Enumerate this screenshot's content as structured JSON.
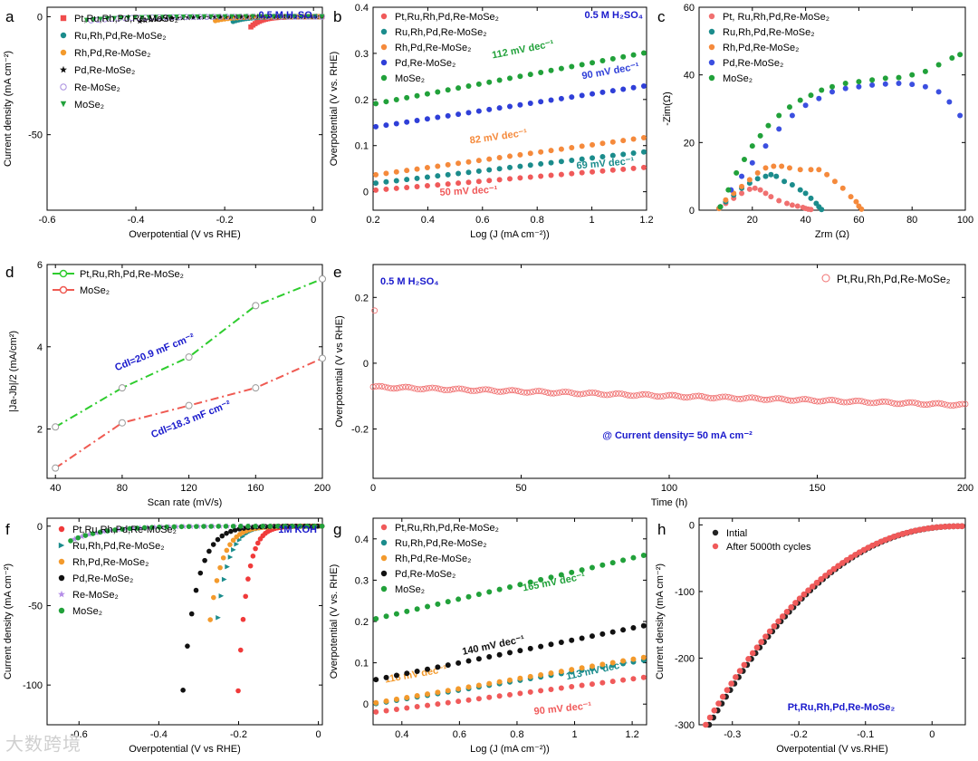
{
  "chart_data": [
    {
      "id": "a",
      "letter": "a",
      "type": "scatter",
      "title": "",
      "annotation": "0.5 M H₂SO₄",
      "xlabel": "Overpotential (V vs RHE)",
      "ylabel": "Current density (mA cm⁻²)",
      "xlim": [
        -0.6,
        0.02
      ],
      "ylim": [
        -82,
        4
      ],
      "xticks": [
        -0.6,
        -0.4,
        -0.2,
        0.0
      ],
      "yticks": [
        -50,
        0
      ],
      "legend_position": "top-left",
      "series": [
        {
          "name": "Pt,Ru,Rh,Pd,Re-MoSe₂",
          "color": "#f04c4c",
          "marker": "square",
          "x0": -0.13,
          "j0": 0.012,
          "slope": 0.055
        },
        {
          "name": "Ru,Rh,Pd,Re-MoSe₂",
          "color": "#1b8c8c",
          "marker": "circle",
          "x0": -0.17,
          "j0": 0.008,
          "slope": 0.075
        },
        {
          "name": "Rh,Pd,Re-MoSe₂",
          "color": "#f39a2c",
          "marker": "circle",
          "x0": -0.21,
          "j0": 0.006,
          "slope": 0.09
        },
        {
          "name": "Pd,Re-MoSe₂",
          "color": "#111111",
          "marker": "star",
          "x0": -0.38,
          "j0": 0.008,
          "slope": 0.165
        },
        {
          "name": "Re-MoSe₂",
          "color": "#a98ee0",
          "marker": "open-circle",
          "x0": -0.49,
          "j0": 0.005,
          "slope": 0.2
        },
        {
          "name": "MoSe₂",
          "color": "#21a13a",
          "marker": "triangle-down",
          "x0": -0.5,
          "j0": 0.005,
          "slope": 0.205
        }
      ]
    },
    {
      "id": "b",
      "letter": "b",
      "type": "scatter",
      "annotation": "0.5 M H₂SO₄",
      "xlabel": "Log (J (mA cm⁻²))",
      "ylabel": "Overpotential (V vs. RHE)",
      "xlim": [
        0.2,
        1.2
      ],
      "ylim": [
        -0.04,
        0.4
      ],
      "xticks": [
        0.2,
        0.4,
        0.6,
        0.8,
        1.0,
        1.2
      ],
      "yticks": [
        0.0,
        0.1,
        0.2,
        0.3,
        0.4
      ],
      "legend_position": "top-left",
      "series": [
        {
          "name": "Pt,Ru,Rh,Pd,Re-MoSe₂",
          "color": "#f05a5a",
          "x0": 0.2,
          "y0": 0.003,
          "slope": 0.05,
          "tafel": "50 mV dec⁻¹"
        },
        {
          "name": "Ru,Rh,Pd,Re-MoSe₂",
          "color": "#1b8c8c",
          "x0": 0.2,
          "y0": 0.018,
          "slope": 0.069,
          "tafel": "69 mV dec⁻¹"
        },
        {
          "name": "Rh,Pd,Re-MoSe₂",
          "color": "#f58a3c",
          "x0": 0.2,
          "y0": 0.036,
          "slope": 0.082,
          "tafel": "82 mV dec⁻¹"
        },
        {
          "name": "Pd,Re-MoSe₂",
          "color": "#2f3fd8",
          "x0": 0.2,
          "y0": 0.14,
          "slope": 0.09,
          "tafel": "90 mV dec⁻¹"
        },
        {
          "name": "MoSe₂",
          "color": "#21a13a",
          "x0": 0.2,
          "y0": 0.19,
          "slope": 0.112,
          "tafel": "112 mV dec⁻¹"
        }
      ]
    },
    {
      "id": "c",
      "letter": "c",
      "type": "scatter",
      "xlabel": "Zrm (Ω)",
      "ylabel": "-Zim(Ω)",
      "xlim": [
        0,
        100
      ],
      "ylim": [
        0,
        60
      ],
      "xticks": [
        20,
        40,
        60,
        80,
        100
      ],
      "yticks": [
        0,
        20,
        40,
        60
      ],
      "legend_position": "top-left",
      "series": [
        {
          "name": "Pt, Ru,Rh,Pd,Re-MoSe₂",
          "color": "#f07070",
          "x": [
            7.5,
            10,
            13,
            16,
            19,
            21,
            23,
            25,
            27,
            30,
            33,
            35,
            37,
            39,
            40,
            41,
            42
          ],
          "y": [
            0.5,
            2,
            3.5,
            5,
            6.2,
            6.5,
            6,
            5,
            4,
            2.8,
            2,
            1.5,
            1.2,
            0.8,
            0.5,
            0.3,
            0.2
          ]
        },
        {
          "name": "Ru,Rh,Pd,Re-MoSe₂",
          "color": "#1b8c8c",
          "x": [
            7.5,
            10,
            13,
            16,
            19,
            22,
            25,
            27,
            29,
            32,
            35,
            38,
            40,
            42,
            44,
            45,
            46
          ],
          "y": [
            0.5,
            2.5,
            4.5,
            6.5,
            8,
            9.3,
            10,
            10.5,
            10,
            8.5,
            7.5,
            6,
            5,
            3.5,
            2,
            1,
            0.2
          ]
        },
        {
          "name": "Rh,Pd,Re-MoSe₂",
          "color": "#f58a3c",
          "x": [
            7.5,
            10,
            13,
            16,
            19,
            22,
            25,
            28,
            31,
            34,
            38,
            42,
            45,
            48,
            51,
            54,
            57,
            59,
            60,
            61
          ],
          "y": [
            0.5,
            3,
            5,
            7,
            9,
            11,
            12.5,
            13,
            13,
            12.5,
            12,
            12,
            12,
            10.5,
            8.5,
            6.5,
            4,
            2.5,
            1.2,
            0.3
          ]
        },
        {
          "name": "Pd,Re-MoSe₂",
          "color": "#3b4fe0",
          "x": [
            8,
            12,
            16,
            20,
            25,
            30,
            35,
            40,
            45,
            50,
            55,
            60,
            65,
            70,
            75,
            80,
            85,
            90,
            94,
            98
          ],
          "y": [
            1,
            6,
            10,
            14,
            19,
            24,
            28,
            31,
            33,
            35,
            36,
            36.5,
            37,
            37.3,
            37.5,
            37.2,
            36.5,
            35,
            32,
            28
          ]
        },
        {
          "name": "MoSe₂",
          "color": "#21a13a",
          "x": [
            8,
            11,
            14,
            17,
            20,
            23,
            26,
            30,
            34,
            38,
            42,
            46,
            50,
            55,
            60,
            65,
            70,
            75,
            80,
            85,
            90,
            95,
            98
          ],
          "y": [
            1,
            6,
            11,
            15,
            19,
            22,
            25,
            28,
            30.5,
            32.5,
            34,
            35.5,
            36.5,
            37.5,
            38,
            38.5,
            39,
            39.2,
            40,
            41,
            43,
            45,
            46
          ]
        }
      ]
    },
    {
      "id": "d",
      "letter": "d",
      "type": "line",
      "xlabel": "Scan rate (mV/s)",
      "ylabel": "|Ja-Jb|/2 (mA/cm²)",
      "xlim": [
        35,
        200
      ],
      "ylim": [
        0.8,
        6
      ],
      "xticks": [
        40,
        80,
        120,
        160,
        200
      ],
      "yticks": [
        2,
        4,
        6
      ],
      "legend_position": "top-left",
      "series": [
        {
          "name": "Pt,Ru,Rh,Pd,Re-MoSe₂",
          "color": "#2ecc2e",
          "x": [
            40,
            80,
            120,
            160,
            200
          ],
          "y": [
            2.05,
            3.0,
            3.75,
            5.0,
            5.65
          ],
          "cdl": "Cdl=20.9 mF cm⁻²"
        },
        {
          "name": "MoSe₂",
          "color": "#ef5a52",
          "x": [
            40,
            80,
            120,
            160,
            200
          ],
          "y": [
            1.05,
            2.15,
            2.57,
            3.0,
            3.72
          ],
          "cdl": "Cdl=18.3 mF cm⁻²"
        }
      ]
    },
    {
      "id": "e",
      "letter": "e",
      "type": "scatter",
      "annotation": "0.5 M H₂SO₄",
      "note": "@ Current density= 50 mA cm⁻²",
      "xlabel": "Time (h)",
      "ylabel": "Overpotential (V vs RHE)",
      "xlim": [
        0,
        200
      ],
      "ylim": [
        -0.35,
        0.3
      ],
      "xticks": [
        0,
        50,
        100,
        150,
        200
      ],
      "yticks": [
        -0.2,
        0.0,
        0.2
      ],
      "legend_position": "top-right",
      "series": [
        {
          "name": "Pt,Ru,Rh,Pd,Re-MoSe₂",
          "color": "#f07070",
          "x_start": 0,
          "x_end": 200,
          "y_start": -0.072,
          "y_end": -0.127
        }
      ]
    },
    {
      "id": "f",
      "letter": "f",
      "type": "scatter",
      "annotation": "1M KOH",
      "xlabel": "Overpotential (V vs RHE)",
      "ylabel": "Current density (mA cm⁻²)",
      "xlim": [
        -0.68,
        0.01
      ],
      "ylim": [
        -125,
        5
      ],
      "xticks": [
        -0.6,
        -0.4,
        -0.2,
        0.0
      ],
      "yticks": [
        -100,
        -50,
        0
      ],
      "legend_position": "top-left",
      "series": [
        {
          "name": "Pt,Ru,Rh,Pd,Re-MoSe₂",
          "color": "#f03a3a",
          "marker": "circle",
          "x0": -0.19,
          "j0": 0.01,
          "slope": 0.05
        },
        {
          "name": "Ru,Rh,Pd,Re-MoSe₂",
          "color": "#1b8c8c",
          "marker": "triangle-right",
          "x0": -0.24,
          "j0": 0.008,
          "slope": 0.065
        },
        {
          "name": "Rh,Pd,Re-MoSe₂",
          "color": "#f39a2c",
          "marker": "circle",
          "x0": -0.26,
          "j0": 0.008,
          "slope": 0.07
        },
        {
          "name": "Pd,Re-MoSe₂",
          "color": "#111111",
          "marker": "circle",
          "x0": -0.35,
          "j0": 0.006,
          "slope": 0.08
        },
        {
          "name": "Re-MoSe₂",
          "color": "#b58ee8",
          "marker": "star",
          "x0": -0.6,
          "j0": 0.005,
          "slope": 0.19
        },
        {
          "name": "MoSe₂",
          "color": "#21a13a",
          "marker": "circle",
          "x0": -0.61,
          "j0": 0.005,
          "slope": 0.19
        }
      ]
    },
    {
      "id": "g",
      "letter": "g",
      "type": "scatter",
      "xlabel": "Log (J (mA cm⁻²))",
      "ylabel": "Overpotential (V vs. RHE)",
      "xlim": [
        0.3,
        1.25
      ],
      "ylim": [
        -0.05,
        0.45
      ],
      "xticks": [
        0.4,
        0.6,
        0.8,
        1.0,
        1.2
      ],
      "yticks": [
        0.0,
        0.1,
        0.2,
        0.3,
        0.4
      ],
      "legend_position": "top-left",
      "series": [
        {
          "name": "Pt,Ru,Rh,Pd,Re-MoSe₂",
          "color": "#f05a5a",
          "x0": 0.3,
          "y0": -0.02,
          "slope": 0.09,
          "tafel": "90 mV dec⁻¹"
        },
        {
          "name": "Ru,Rh,Pd,Re-MoSe₂",
          "color": "#1b8c8c",
          "x0": 0.3,
          "y0": 0.0,
          "slope": 0.113,
          "tafel": "113 mV dec⁻¹"
        },
        {
          "name": "Rh,Pd,Re-MoSe₂",
          "color": "#f39a2c",
          "x0": 0.3,
          "y0": 0.002,
          "slope": 0.118,
          "tafel": "118 mV dec⁻¹"
        },
        {
          "name": "Pd,Re-MoSe₂",
          "color": "#111111",
          "x0": 0.3,
          "y0": 0.058,
          "slope": 0.14,
          "tafel": "140 mV dec⁻¹"
        },
        {
          "name": "MoSe₂",
          "color": "#21a13a",
          "x0": 0.3,
          "y0": 0.205,
          "slope": 0.165,
          "tafel": "165 mV dec⁻¹"
        }
      ]
    },
    {
      "id": "h",
      "letter": "h",
      "type": "scatter",
      "annotation": "Pt,Ru,Rh,Pd,Re-MoSe₂",
      "xlabel": "Overpotential (V vs.RHE)",
      "ylabel": "Current density (mA cm⁻²)",
      "xlim": [
        -0.35,
        0.05
      ],
      "ylim": [
        -300,
        10
      ],
      "xticks": [
        -0.3,
        -0.2,
        -0.1,
        0.0
      ],
      "yticks": [
        -300,
        -200,
        -100,
        0
      ],
      "legend_position": "top-left",
      "series": [
        {
          "name": "Intial",
          "color": "#222222",
          "x0": -0.335,
          "j_end": -300
        },
        {
          "name": "After 5000th cycles",
          "color": "#f05a5a",
          "x0": -0.34,
          "j_end": -300
        }
      ]
    }
  ],
  "watermark": "大数跨境"
}
